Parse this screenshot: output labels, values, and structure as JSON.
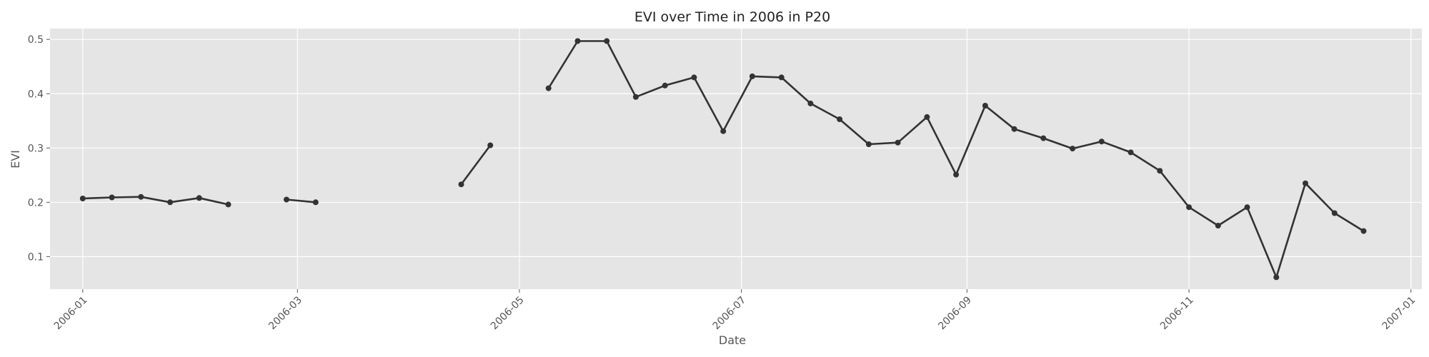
{
  "chart_data": {
    "type": "line",
    "title": "EVI over Time in 2006 in P20",
    "xlabel": "Date",
    "ylabel": "EVI",
    "x_type": "date",
    "xlim": [
      "2005-12-23",
      "2007-01-04"
    ],
    "ylim": [
      0.04,
      0.52
    ],
    "x_ticks": [
      "2006-01",
      "2006-03",
      "2006-05",
      "2006-07",
      "2006-09",
      "2006-11",
      "2007-01"
    ],
    "y_ticks": [
      0.1,
      0.2,
      0.3,
      0.4,
      0.5
    ],
    "grid": true,
    "legend": "none",
    "colors": {
      "background": "#e5e5e5",
      "grid": "#ffffff",
      "line": "#333333"
    },
    "series": [
      {
        "segments": [
          [
            [
              "2006-01-01",
              0.207
            ],
            [
              "2006-01-09",
              0.209
            ],
            [
              "2006-01-17",
              0.21
            ],
            [
              "2006-01-25",
              0.2
            ],
            [
              "2006-02-02",
              0.208
            ],
            [
              "2006-02-10",
              0.196
            ]
          ],
          [
            [
              "2006-02-26",
              0.205
            ],
            [
              "2006-03-06",
              0.2
            ]
          ],
          [
            [
              "2006-04-15",
              0.233
            ],
            [
              "2006-04-23",
              0.305
            ]
          ],
          [
            [
              "2006-05-09",
              0.41
            ],
            [
              "2006-05-17",
              0.497
            ],
            [
              "2006-05-25",
              0.497
            ],
            [
              "2006-06-02",
              0.394
            ],
            [
              "2006-06-10",
              0.415
            ],
            [
              "2006-06-18",
              0.43
            ],
            [
              "2006-06-26",
              0.331
            ],
            [
              "2006-07-04",
              0.432
            ],
            [
              "2006-07-12",
              0.43
            ],
            [
              "2006-07-20",
              0.382
            ],
            [
              "2006-07-28",
              0.353
            ],
            [
              "2006-08-05",
              0.307
            ],
            [
              "2006-08-13",
              0.31
            ],
            [
              "2006-08-21",
              0.357
            ],
            [
              "2006-08-29",
              0.251
            ],
            [
              "2006-09-06",
              0.378
            ],
            [
              "2006-09-14",
              0.335
            ],
            [
              "2006-09-22",
              0.318
            ],
            [
              "2006-09-30",
              0.299
            ],
            [
              "2006-10-08",
              0.312
            ],
            [
              "2006-10-16",
              0.292
            ],
            [
              "2006-10-24",
              0.258
            ],
            [
              "2006-11-01",
              0.191
            ],
            [
              "2006-11-09",
              0.157
            ],
            [
              "2006-11-17",
              0.191
            ],
            [
              "2006-11-25",
              0.062
            ],
            [
              "2006-12-03",
              0.235
            ],
            [
              "2006-12-11",
              0.18
            ],
            [
              "2006-12-19",
              0.147
            ]
          ]
        ]
      }
    ]
  }
}
